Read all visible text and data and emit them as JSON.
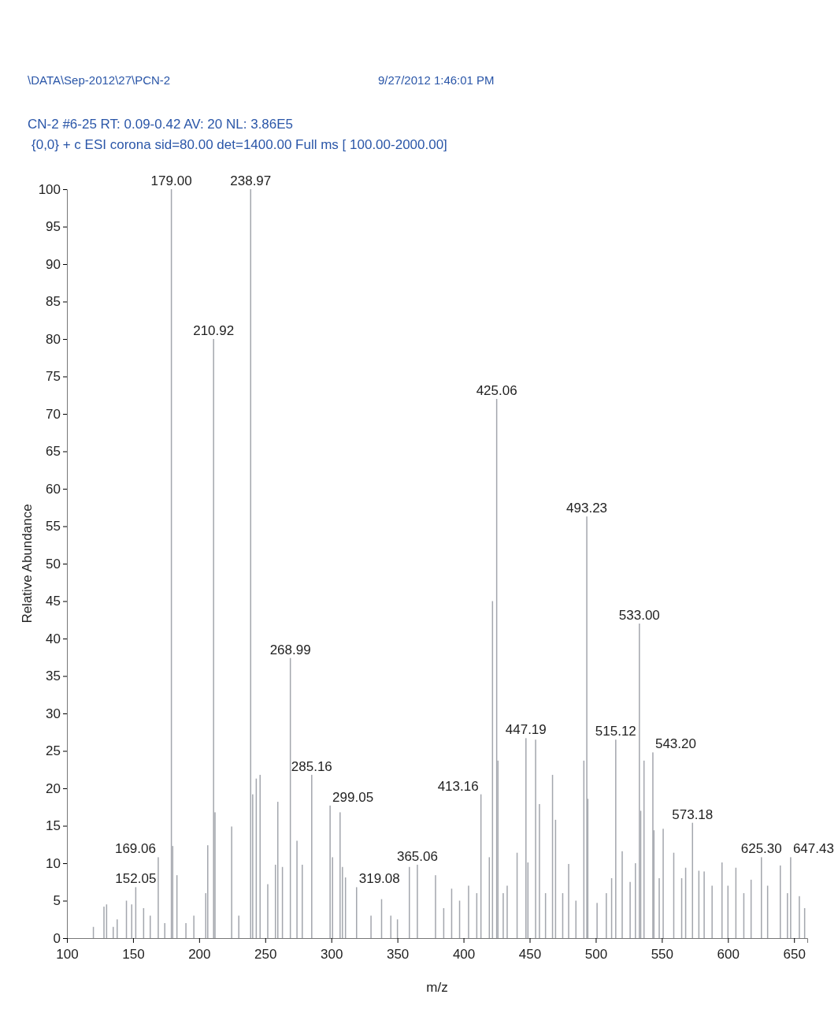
{
  "chart_data": {
    "type": "bar",
    "title": "\\DATA\\Sep-2012\\27\\PCN-2",
    "xlabel": "m/z",
    "ylabel": "Relative Abundance",
    "color": "#a3a6ad",
    "x": [
      120,
      128,
      130,
      135,
      138,
      145,
      149,
      152.05,
      158,
      163,
      169.06,
      174,
      179.0,
      180,
      183.2,
      190,
      196,
      205,
      206.5,
      210.92,
      212,
      224.6,
      230,
      238.97,
      240.5,
      243.2,
      246.1,
      251.9,
      257.7,
      259.5,
      263,
      268.99,
      274,
      278,
      285.16,
      299.05,
      300.9,
      306.6,
      308.4,
      310.7,
      319.08,
      330,
      338,
      345,
      350,
      359,
      365.06,
      378.8,
      385,
      391,
      397,
      403.8,
      410,
      413.16,
      419.5,
      421.9,
      425.06,
      426,
      430,
      433,
      440.5,
      447.19,
      448.7,
      454.5,
      457.4,
      462,
      467.3,
      469.6,
      475,
      479.5,
      485,
      491,
      493.23,
      494,
      501,
      508,
      512,
      515.12,
      520,
      526,
      530,
      533.0,
      534,
      536.5,
      543.2,
      544,
      548,
      551,
      559,
      565,
      568,
      573.18,
      578,
      582,
      588,
      595.5,
      600,
      606,
      612,
      617.5,
      625.3,
      630,
      639.6,
      645,
      647.43,
      654,
      658
    ],
    "values": [
      1.5,
      4.2,
      4.5,
      1.5,
      2.5,
      5,
      4.5,
      6.8,
      4,
      3,
      10.8,
      2,
      100,
      12.3,
      8.4,
      2,
      3,
      6,
      12.4,
      80,
      16.8,
      14.9,
      3,
      100,
      19.2,
      21.3,
      21.8,
      7.2,
      9.8,
      18.2,
      9.5,
      37.4,
      13,
      9.8,
      21.8,
      17.7,
      10.8,
      16.8,
      9.5,
      8.1,
      6.8,
      3,
      5.2,
      3,
      2.5,
      9.5,
      9.8,
      8.4,
      4,
      6.6,
      5,
      7,
      6,
      19.2,
      10.8,
      45,
      72,
      23.7,
      6,
      7,
      11.4,
      26.7,
      10.1,
      26.5,
      17.9,
      6,
      21.8,
      15.8,
      6,
      9.9,
      5,
      23.7,
      56.3,
      18.6,
      4.7,
      6,
      8,
      26.5,
      11.6,
      7.5,
      10,
      42,
      17,
      23.7,
      24.8,
      14.4,
      8,
      14.6,
      11.4,
      8,
      9.4,
      15.4,
      9,
      8.9,
      7,
      10.1,
      7,
      9.4,
      6,
      7.8,
      10.8,
      7,
      9.7,
      6,
      10.8,
      5.6,
      4
    ],
    "xlim": [
      100,
      660
    ],
    "xticks": [
      100,
      150,
      200,
      250,
      300,
      350,
      400,
      450,
      500,
      550,
      600,
      650
    ],
    "ylim": [
      0,
      100
    ],
    "yticks": [
      0,
      5,
      10,
      15,
      20,
      25,
      30,
      35,
      40,
      45,
      50,
      55,
      60,
      65,
      70,
      75,
      80,
      85,
      90,
      95,
      100
    ],
    "grid": false,
    "annotations": [
      "9/27/2012 1:46:01 PM",
      "CN-2 #6-25  RT: 0.09-0.42  AV: 20  NL: 3.86E5",
      "{0,0}  + c ESI corona sid=80.00  det=1400.00 Full ms [ 100.00-2000.00]",
      {
        "text": "152.05",
        "x": 152.05,
        "y": 6.8
      },
      {
        "text": "169.06",
        "x": 169.06,
        "y": 10.8
      },
      {
        "text": "179.00",
        "x": 179.0,
        "y": 100
      },
      {
        "text": "210.92",
        "x": 210.92,
        "y": 80
      },
      {
        "text": "238.97",
        "x": 238.97,
        "y": 100
      },
      {
        "text": "268.99",
        "x": 268.99,
        "y": 37.4
      },
      {
        "text": "285.16",
        "x": 285.16,
        "y": 21.8
      },
      {
        "text": "299.05",
        "x": 299.05,
        "y": 17.7
      },
      {
        "text": "319.08",
        "x": 319.08,
        "y": 6.8
      },
      {
        "text": "365.06",
        "x": 365.06,
        "y": 9.8
      },
      {
        "text": "413.16",
        "x": 413.16,
        "y": 19.2
      },
      {
        "text": "425.06",
        "x": 425.06,
        "y": 72
      },
      {
        "text": "447.19",
        "x": 447.19,
        "y": 26.7
      },
      {
        "text": "493.23",
        "x": 493.23,
        "y": 56.3
      },
      {
        "text": "515.12",
        "x": 515.12,
        "y": 26.5
      },
      {
        "text": "533.00",
        "x": 533.0,
        "y": 42
      },
      {
        "text": "543.20",
        "x": 543.2,
        "y": 24.8
      },
      {
        "text": "573.18",
        "x": 573.18,
        "y": 15.4
      },
      {
        "text": "625.30",
        "x": 625.3,
        "y": 10.8
      },
      {
        "text": "647.43",
        "x": 647.43,
        "y": 10.8
      }
    ]
  }
}
